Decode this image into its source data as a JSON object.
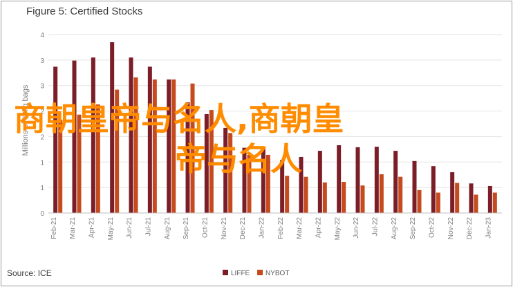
{
  "title": "Figure 5: Certified Stocks",
  "source": "Source: ICE",
  "watermark": {
    "line1": "商朝皇帝与名人,商朝皇",
    "line2": "帝与名人"
  },
  "colors": {
    "LIFFE": "#7b1e28",
    "NYBOT": "#c54a1e",
    "grid": "#e3e3e3",
    "axis": "#bfbfbf",
    "text": "#7f7f7f"
  },
  "chart_data": {
    "type": "bar",
    "title": "Figure 5: Certified Stocks",
    "ylabel": "Millions of 60kg bags",
    "ylim": [
      0,
      3.5
    ],
    "yticks": [
      0,
      0.5,
      1,
      1.5,
      2,
      2.5,
      3,
      3.5
    ],
    "ytick_labels": [
      "0",
      "1",
      "1",
      "2",
      "2",
      "3",
      "3",
      "4"
    ],
    "grid": true,
    "legend": "bottom-center",
    "categories": [
      "Feb-21",
      "Mar-21",
      "Apr-21",
      "May-21",
      "Jun-21",
      "Jul-21",
      "Aug-21",
      "Sep-21",
      "Oct-21",
      "Nov-21",
      "Dec-21",
      "Jan-22",
      "Feb-22",
      "Mar-22",
      "Apr-22",
      "May-22",
      "Jun-22",
      "Jul-22",
      "Aug-22",
      "Sep-22",
      "Oct-22",
      "Nov-22",
      "Dec-22",
      "Jan-23"
    ],
    "tick_labels": [
      "Feb-21",
      "",
      "Mar-21",
      "",
      "Apr-21",
      "",
      "May-21",
      "",
      "Jun-21",
      "",
      "Jul-21",
      "",
      "Aug-21",
      "",
      "Sep-21",
      "",
      "Oct-21",
      "",
      "Nov-21",
      "",
      "Dec-21",
      "",
      "Jan-22",
      "",
      "Feb-22",
      "",
      "Mar-22",
      "",
      "Apr-22",
      "",
      "May-22",
      "",
      "Jun-22",
      "",
      "Jul-22",
      "",
      "Aug-22",
      "",
      "Sep-22",
      "",
      "Oct-22",
      "",
      "Nov-22",
      "",
      "Dec-22",
      "",
      "Jan-23",
      ""
    ],
    "series": [
      {
        "name": "LIFFE",
        "values": [
          2.87,
          2.99,
          3.05,
          3.35,
          3.05,
          2.87,
          2.62,
          2.17,
          1.94,
          1.67,
          1.28,
          1.28,
          1.04,
          1.1,
          1.22,
          1.33,
          1.29,
          1.3,
          1.22,
          1.02,
          0.92,
          0.8,
          0.58,
          0.53
        ]
      },
      {
        "name": "NYBOT",
        "values": [
          1.83,
          1.93,
          2.13,
          2.42,
          2.66,
          2.62,
          2.62,
          2.54,
          2.02,
          1.57,
          1.14,
          1.14,
          0.73,
          0.71,
          0.6,
          0.61,
          0.54,
          0.76,
          0.71,
          0.45,
          0.4,
          0.59,
          0.36,
          0.4
        ]
      }
    ]
  }
}
